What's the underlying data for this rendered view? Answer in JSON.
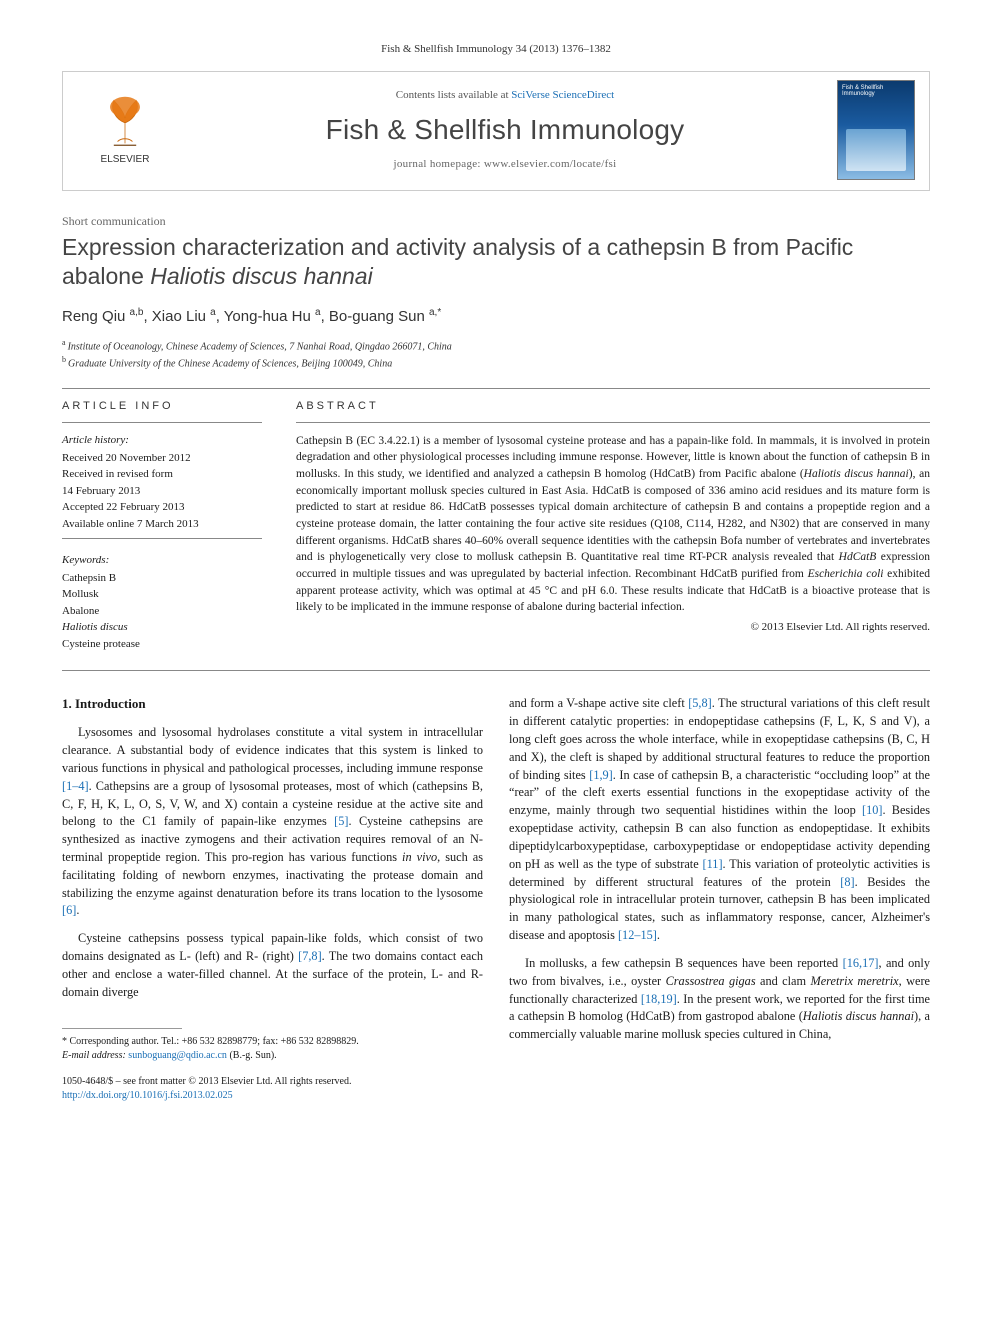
{
  "page_background": "#ffffff",
  "text_color": "#1a1a1a",
  "link_color": "#1b6fb5",
  "header": {
    "citation": "Fish & Shellfish Immunology 34 (2013) 1376–1382",
    "publisher_name": "ELSEVIER",
    "contents_prefix": "Contents lists available at ",
    "contents_link": "SciVerse ScienceDirect",
    "journal_title": "Fish & Shellfish Immunology",
    "homepage_label": "journal homepage: ",
    "homepage_url": "www.elsevier.com/locate/fsi",
    "cover_caption": "Fish & Shellfish Immunology"
  },
  "article": {
    "category": "Short communication",
    "title_pre": "Expression characterization and activity analysis of a cathepsin B from Pacific abalone ",
    "title_italic": "Haliotis discus hannai",
    "authors_html": "Reng Qiu <sup>a,b</sup>, Xiao Liu <sup>a</sup>, Yong-hua Hu <sup>a</sup>, Bo-guang Sun <sup>a,*</sup>",
    "affiliations": [
      "Institute of Oceanology, Chinese Academy of Sciences, 7 Nanhai Road, Qingdao 266071, China",
      "Graduate University of the Chinese Academy of Sciences, Beijing 100049, China"
    ],
    "affil_sup": [
      "a",
      "b"
    ]
  },
  "info": {
    "heading": "ARTICLE INFO",
    "history_head": "Article history:",
    "history": [
      "Received 20 November 2012",
      "Received in revised form",
      "14 February 2013",
      "Accepted 22 February 2013",
      "Available online 7 March 2013"
    ],
    "keywords_head": "Keywords:",
    "keywords": [
      "Cathepsin B",
      "Mollusk",
      "Abalone",
      "Haliotis discus",
      "Cysteine protease"
    ]
  },
  "abstract": {
    "heading": "ABSTRACT",
    "text_parts": [
      "Cathepsin B (EC 3.4.22.1) is a member of lysosomal cysteine protease and has a papain-like fold. In mammals, it is involved in protein degradation and other physiological processes including immune response. However, little is known about the function of cathepsin B in mollusks. In this study, we identified and analyzed a cathepsin B homolog (HdCatB) from Pacific abalone (",
      "Haliotis discus hannai",
      "), an economically important mollusk species cultured in East Asia. HdCatB is composed of 336 amino acid residues and its mature form is predicted to start at residue 86. HdCatB possesses typical domain architecture of cathepsin B and contains a propeptide region and a cysteine protease domain, the latter containing the four active site residues (Q108, C114, H282, and N302) that are conserved in many different organisms. HdCatB shares 40–60% overall sequence identities with the cathepsin Bofa number of vertebrates and invertebrates and is phylogenetically very close to mollusk cathepsin B. Quantitative real time RT-PCR analysis revealed that ",
      "HdCatB",
      " expression occurred in multiple tissues and was upregulated by bacterial infection. Recombinant HdCatB purified from ",
      "Escherichia coli",
      " exhibited apparent protease activity, which was optimal at 45 °C and pH 6.0. These results indicate that HdCatB is a bioactive protease that is likely to be implicated in the immune response of abalone during bacterial infection."
    ],
    "copyright": "© 2013 Elsevier Ltd. All rights reserved."
  },
  "body": {
    "section_head": "1. Introduction",
    "col1_p1": "Lysosomes and lysosomal hydrolases constitute a vital system in intracellular clearance. A substantial body of evidence indicates that this system is linked to various functions in physical and pathological processes, including immune response [1–4]. Cathepsins are a group of lysosomal proteases, most of which (cathepsins B, C, F, H, K, L, O, S, V, W, and X) contain a cysteine residue at the active site and belong to the C1 family of papain-like enzymes [5]. Cysteine cathepsins are synthesized as inactive zymogens and their activation requires removal of an N-terminal propeptide region. This pro-region has various functions in vivo, such as facilitating folding of newborn enzymes, inactivating the protease domain and stabilizing the enzyme against denaturation before its trans location to the lysosome [6].",
    "col1_p2": "Cysteine cathepsins possess typical papain-like folds, which consist of two domains designated as L- (left) and R- (right) [7,8]. The two domains contact each other and enclose a water-filled channel. At the surface of the protein, L- and R-domain diverge",
    "col2_p1": "and form a V-shape active site cleft [5,8]. The structural variations of this cleft result in different catalytic properties: in endopeptidase cathepsins (F, L, K, S and V), a long cleft goes across the whole interface, while in exopeptidase cathepsins (B, C, H and X), the cleft is shaped by additional structural features to reduce the proportion of binding sites [1,9]. In case of cathepsin B, a characteristic “occluding loop” at the “rear” of the cleft exerts essential functions in the exopeptidase activity of the enzyme, mainly through two sequential histidines within the loop [10]. Besides exopeptidase activity, cathepsin B can also function as endopeptidase. It exhibits dipeptidylcarboxypeptidase, carboxypeptidase or endopeptidase activity depending on pH as well as the type of substrate [11]. This variation of proteolytic activities is determined by different structural features of the protein [8]. Besides the physiological role in intracellular protein turnover, cathepsin B has been implicated in many pathological states, such as inflammatory response, cancer, Alzheimer's disease and apoptosis [12–15].",
    "col2_p2": "In mollusks, a few cathepsin B sequences have been reported [16,17], and only two from bivalves, i.e., oyster Crassostrea gigas and clam Meretrix meretrix, were functionally characterized [18,19]. In the present work, we reported for the first time a cathepsin B homolog (HdCatB) from gastropod abalone (Haliotis discus hannai), a commercially valuable marine mollusk species cultured in China,"
  },
  "footnote": {
    "corr": "* Corresponding author. Tel.: +86 532 82898779; fax: +86 532 82898829.",
    "email_label": "E-mail address: ",
    "email": "sunboguang@qdio.ac.cn",
    "email_tail": " (B.-g. Sun)."
  },
  "pubfoot": {
    "left1": "1050-4648/$ – see front matter © 2013 Elsevier Ltd. All rights reserved.",
    "doi": "http://dx.doi.org/10.1016/j.fsi.2013.02.025"
  }
}
